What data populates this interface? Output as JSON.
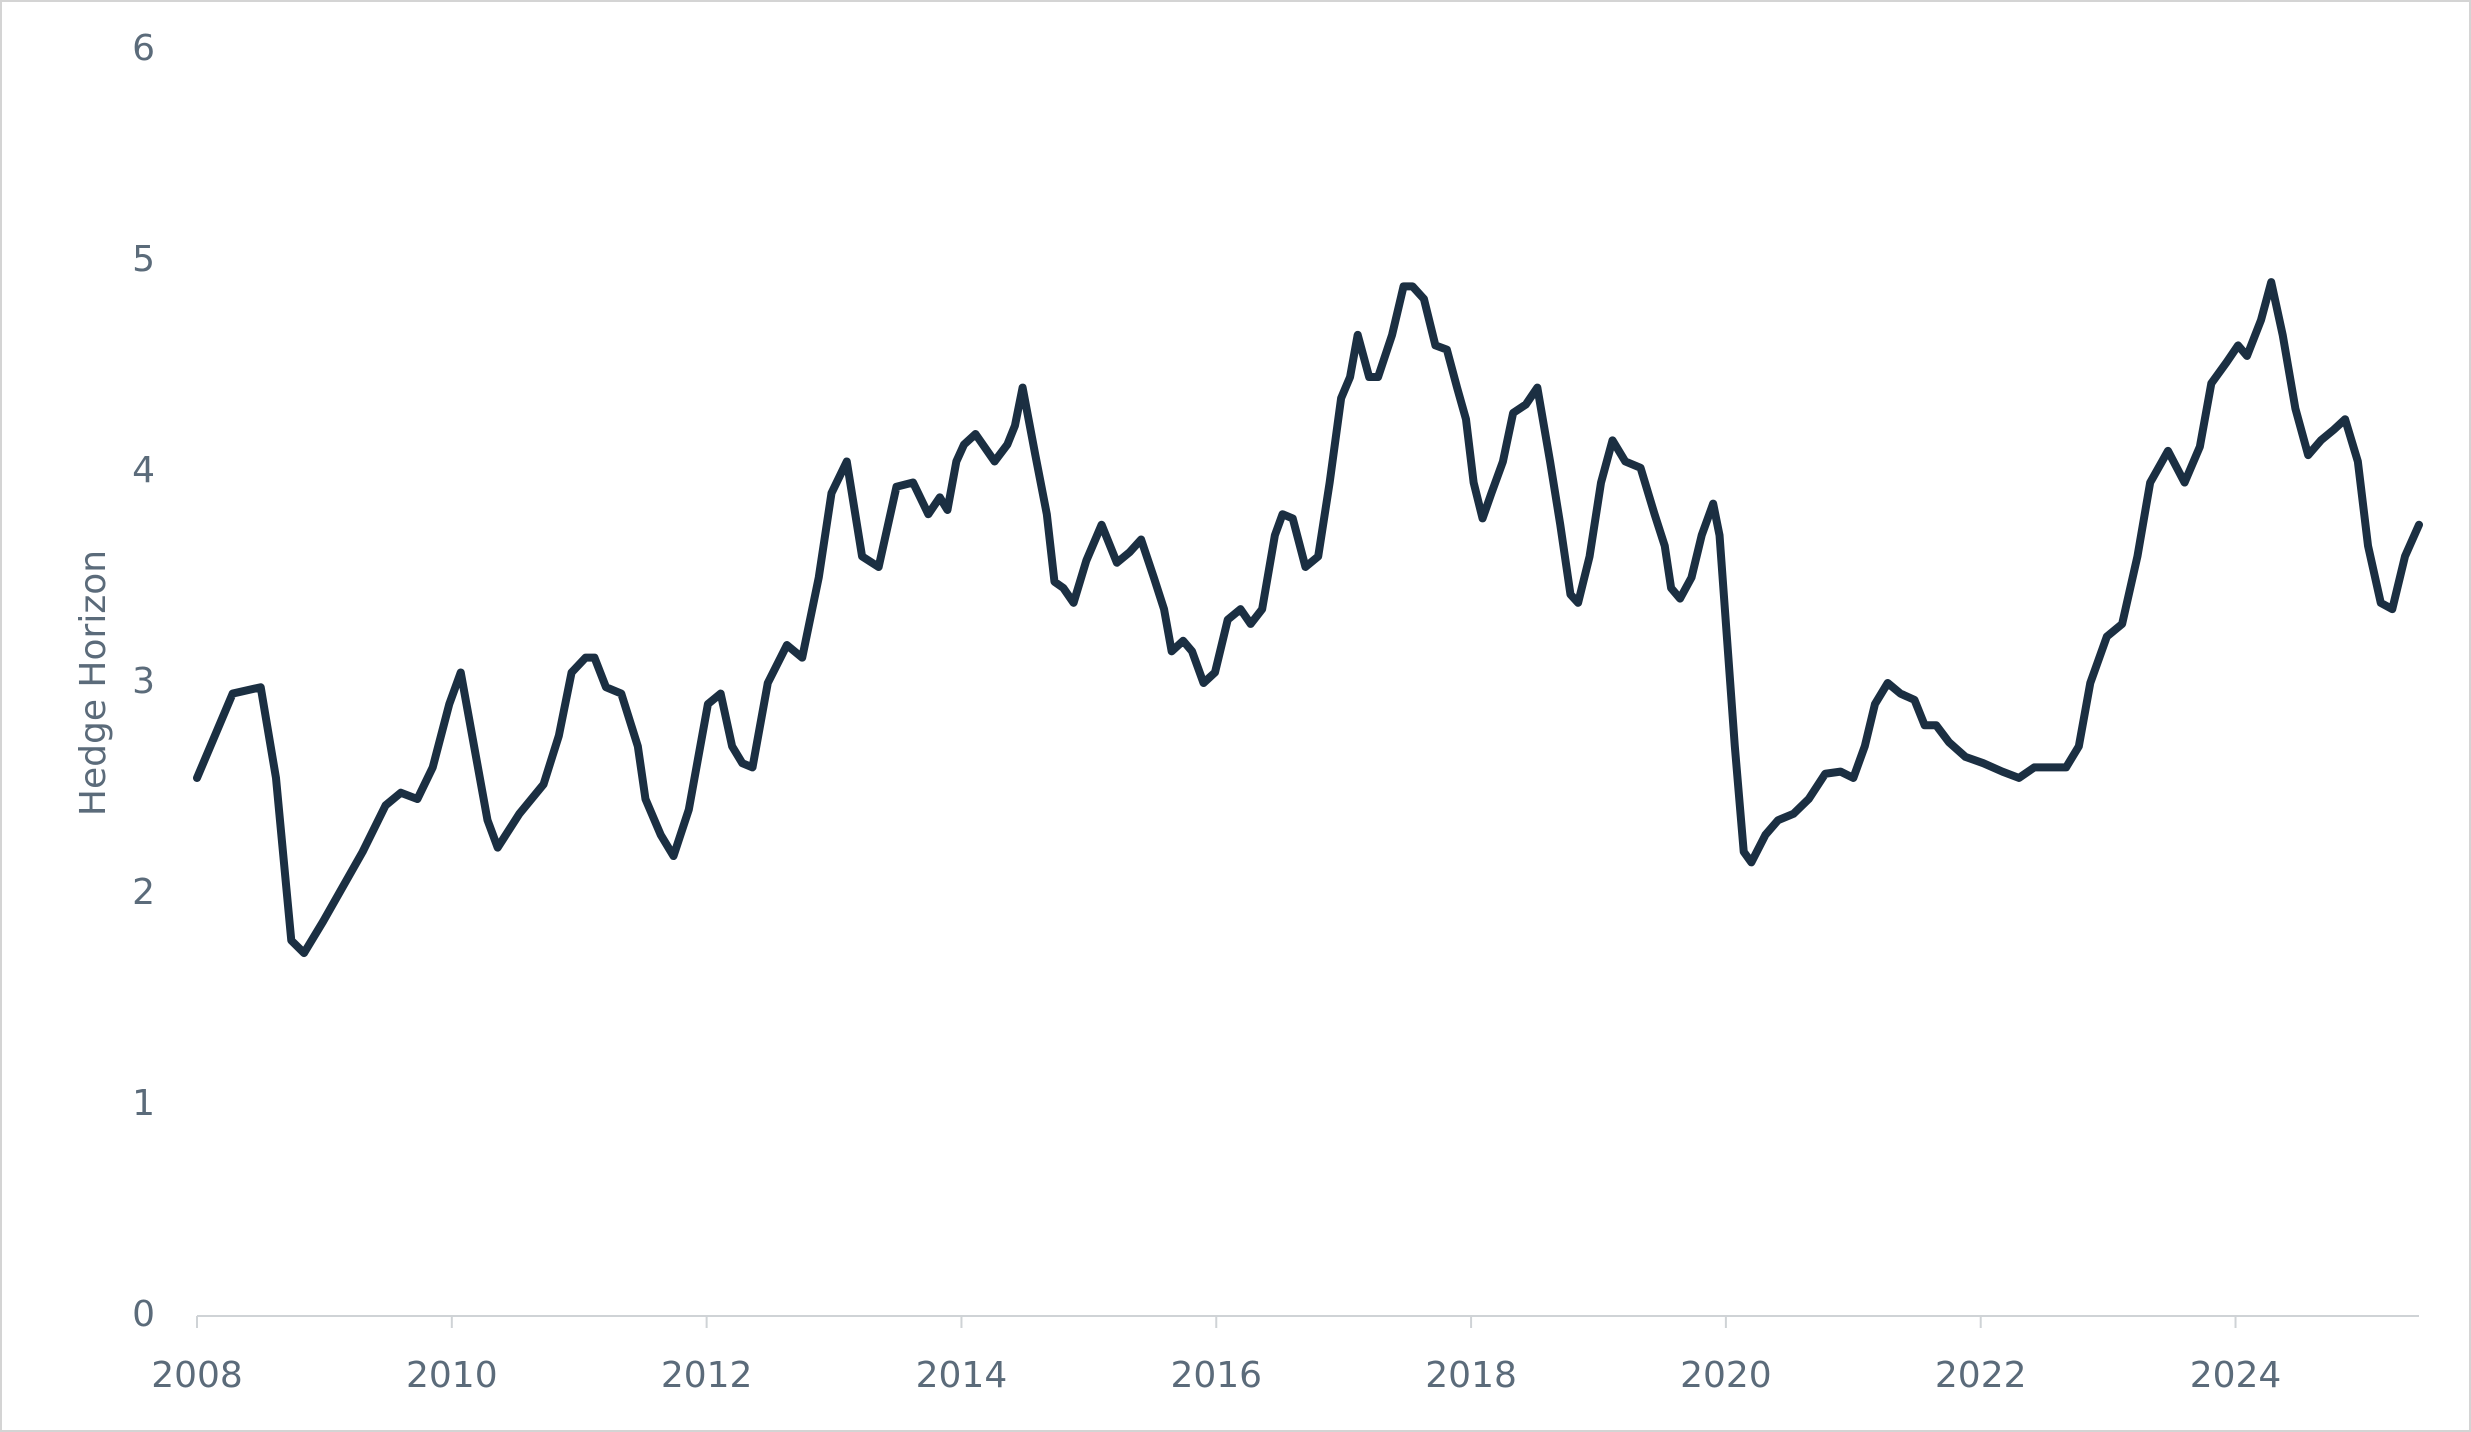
{
  "chart_data": {
    "type": "line",
    "y_label": "Hedge Horizon",
    "x": [
      2008,
      2008.28,
      2008.5,
      2008.62,
      2008.74,
      2008.84,
      2008.99,
      2009.3,
      2009.48,
      2009.6,
      2009.73,
      2009.85,
      2009.98,
      2010.07,
      2010.19,
      2010.28,
      2010.36,
      2010.53,
      2010.72,
      2010.84,
      2010.94,
      2011.05,
      2011.12,
      2011.21,
      2011.33,
      2011.46,
      2011.52,
      2011.64,
      2011.74,
      2011.86,
      2012.01,
      2012.11,
      2012.2,
      2012.28,
      2012.36,
      2012.48,
      2012.63,
      2012.75,
      2012.88,
      2012.98,
      2013.1,
      2013.22,
      2013.35,
      2013.49,
      2013.62,
      2013.74,
      2013.83,
      2013.89,
      2013.96,
      2014.02,
      2014.11,
      2014.26,
      2014.36,
      2014.42,
      2014.48,
      2014.58,
      2014.67,
      2014.73,
      2014.8,
      2014.88,
      2014.98,
      2015.1,
      2015.22,
      2015.32,
      2015.41,
      2015.51,
      2015.59,
      2015.65,
      2015.74,
      2015.81,
      2015.9,
      2015.99,
      2016.09,
      2016.19,
      2016.27,
      2016.36,
      2016.46,
      2016.52,
      2016.6,
      2016.7,
      2016.8,
      2016.89,
      2016.98,
      2017.05,
      2017.11,
      2017.2,
      2017.27,
      2017.38,
      2017.47,
      2017.54,
      2017.63,
      2017.72,
      2017.81,
      2017.89,
      2017.96,
      2018.02,
      2018.09,
      2018.16,
      2018.25,
      2018.33,
      2018.43,
      2018.52,
      2018.62,
      2018.7,
      2018.78,
      2018.84,
      2018.93,
      2019.02,
      2019.11,
      2019.21,
      2019.33,
      2019.44,
      2019.52,
      2019.57,
      2019.64,
      2019.73,
      2019.81,
      2019.9,
      2019.95,
      2020.01,
      2020.07,
      2020.14,
      2020.2,
      2020.31,
      2020.41,
      2020.53,
      2020.65,
      2020.78,
      2020.9,
      2021.0,
      2021.09,
      2021.17,
      2021.27,
      2021.37,
      2021.48,
      2021.56,
      2021.65,
      2021.75,
      2021.88,
      2022.02,
      2022.17,
      2022.3,
      2022.42,
      2022.54,
      2022.67,
      2022.77,
      2022.86,
      2022.99,
      2023.11,
      2023.23,
      2023.33,
      2023.47,
      2023.6,
      2023.72,
      2023.81,
      2023.93,
      2024.02,
      2024.09,
      2024.2,
      2024.28,
      2024.37,
      2024.47,
      2024.57,
      2024.67,
      2024.77,
      2024.86,
      2024.96,
      2025.04,
      2025.14,
      2025.23,
      2025.33,
      2025.44
    ],
    "series": [
      {
        "color": "#1b2f42",
        "values": [
          2.55,
          2.95,
          2.98,
          2.55,
          1.78,
          1.72,
          1.87,
          2.2,
          2.42,
          2.48,
          2.45,
          2.6,
          2.9,
          3.05,
          2.65,
          2.35,
          2.22,
          2.38,
          2.52,
          2.75,
          3.05,
          3.12,
          3.12,
          2.98,
          2.95,
          2.7,
          2.45,
          2.28,
          2.18,
          2.4,
          2.9,
          2.95,
          2.7,
          2.62,
          2.6,
          3.0,
          3.18,
          3.12,
          3.5,
          3.9,
          4.05,
          3.6,
          3.55,
          3.93,
          3.95,
          3.8,
          3.88,
          3.82,
          4.05,
          4.13,
          4.18,
          4.05,
          4.13,
          4.22,
          4.4,
          4.08,
          3.8,
          3.48,
          3.45,
          3.38,
          3.58,
          3.75,
          3.57,
          3.62,
          3.68,
          3.5,
          3.35,
          3.15,
          3.2,
          3.15,
          3.0,
          3.05,
          3.3,
          3.35,
          3.28,
          3.35,
          3.7,
          3.8,
          3.78,
          3.55,
          3.6,
          3.95,
          4.35,
          4.45,
          4.65,
          4.45,
          4.45,
          4.65,
          4.88,
          4.88,
          4.82,
          4.6,
          4.58,
          4.4,
          4.25,
          3.95,
          3.78,
          3.9,
          4.05,
          4.28,
          4.32,
          4.4,
          4.05,
          3.75,
          3.42,
          3.38,
          3.6,
          3.95,
          4.15,
          4.05,
          4.02,
          3.8,
          3.65,
          3.45,
          3.4,
          3.5,
          3.7,
          3.85,
          3.7,
          3.2,
          2.7,
          2.2,
          2.15,
          2.28,
          2.35,
          2.38,
          2.45,
          2.57,
          2.58,
          2.55,
          2.7,
          2.9,
          3.0,
          2.95,
          2.92,
          2.8,
          2.8,
          2.72,
          2.65,
          2.62,
          2.58,
          2.55,
          2.6,
          2.6,
          2.6,
          2.7,
          3.0,
          3.22,
          3.28,
          3.6,
          3.95,
          4.1,
          3.95,
          4.12,
          4.42,
          4.52,
          4.6,
          4.55,
          4.72,
          4.9,
          4.65,
          4.3,
          4.08,
          4.15,
          4.2,
          4.25,
          4.05,
          3.65,
          3.38,
          3.35,
          3.6,
          3.75
        ]
      }
    ],
    "xlim": [
      2008,
      2025.44
    ],
    "xticks": [
      2008,
      2010,
      2012,
      2014,
      2016,
      2018,
      2020,
      2022,
      2024
    ],
    "ylim": [
      0,
      6
    ],
    "yticks": [
      0,
      1,
      2,
      3,
      4,
      5,
      6
    ],
    "grid": false
  }
}
